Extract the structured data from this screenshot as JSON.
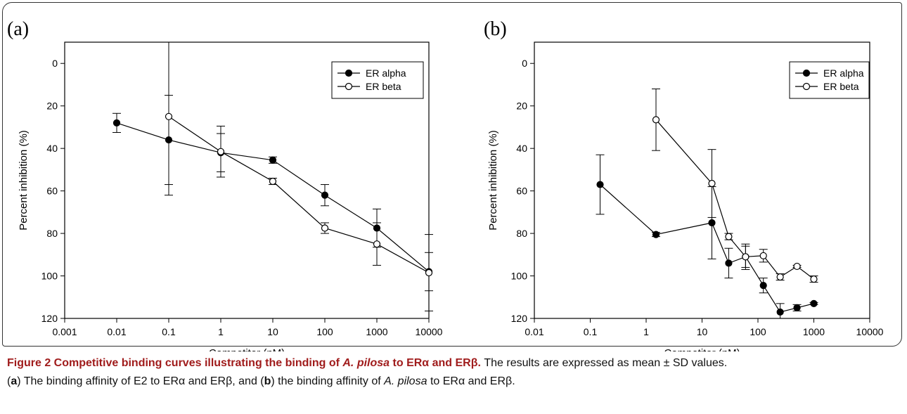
{
  "chart_data": [
    {
      "type": "line",
      "panel_label": "(a)",
      "xlabel": "Competitor (nM)",
      "ylabel": "Percent inhibition (%)",
      "x_scale": "log",
      "xlim": [
        0.001,
        10000
      ],
      "x_ticks": [
        "0.001",
        "0.01",
        "0.1",
        "1",
        "10",
        "100",
        "1000",
        "10000"
      ],
      "x_tick_values": [
        0.001,
        0.01,
        0.1,
        1,
        10,
        100,
        1000,
        10000
      ],
      "y_inverted": true,
      "ylim": [
        120,
        -10
      ],
      "y_ticks": [
        0,
        20,
        40,
        60,
        80,
        100,
        120
      ],
      "legend_placement": "top-right",
      "series": [
        {
          "name": "ER alpha",
          "marker": "filled",
          "x": [
            0.01,
            0.1,
            1,
            10,
            100,
            1000,
            10000
          ],
          "y": [
            28,
            36,
            42,
            45.5,
            62,
            77.5,
            98
          ],
          "err": [
            4.5,
            21,
            9,
            1.5,
            5,
            9,
            9
          ]
        },
        {
          "name": "ER beta",
          "marker": "open",
          "x": [
            0.1,
            1,
            10,
            100,
            1000,
            10000
          ],
          "y": [
            25,
            41.5,
            55.5,
            77.5,
            85,
            98.5
          ],
          "err": [
            37,
            12,
            1.5,
            2.5,
            10,
            18
          ]
        }
      ]
    },
    {
      "type": "line",
      "panel_label": "(b)",
      "xlabel": "Competitor (nM)",
      "ylabel": "Percent inhibition (%)",
      "x_scale": "log",
      "xlim": [
        0.01,
        10000
      ],
      "x_ticks": [
        "0.01",
        "0.1",
        "1",
        "10",
        "100",
        "1000",
        "10000"
      ],
      "x_tick_values": [
        0.01,
        0.1,
        1,
        10,
        100,
        1000,
        10000
      ],
      "y_inverted": true,
      "ylim": [
        120,
        -10
      ],
      "y_ticks": [
        0,
        20,
        40,
        60,
        80,
        100,
        120
      ],
      "legend_placement": "top-right",
      "series": [
        {
          "name": "ER alpha",
          "marker": "filled",
          "x": [
            0.15,
            1.5,
            15,
            30,
            60,
            125,
            250,
            500,
            1000
          ],
          "y": [
            57,
            80.5,
            75,
            94,
            91,
            104.5,
            117,
            115,
            113
          ],
          "err": [
            14,
            1,
            17,
            7,
            6,
            3.5,
            4,
            1.5,
            0.5
          ]
        },
        {
          "name": "ER beta",
          "marker": "open",
          "x": [
            1.5,
            15,
            30,
            60,
            125,
            250,
            500,
            1000
          ],
          "y": [
            26.5,
            56.5,
            81.5,
            91,
            90.5,
            100.5,
            95.5,
            101.5
          ],
          "err": [
            14.5,
            16,
            1.5,
            5,
            3,
            1.5,
            0.5,
            1.5
          ]
        }
      ]
    }
  ],
  "caption": {
    "title": "Figure 2 Competitive binding curves illustrating the binding of",
    "title_italic": "A. pilosa",
    "title_end": "to ERα and ERβ.",
    "text1": "The results are expressed as mean ± SD values.",
    "text2_open": "(",
    "label_a": "a",
    "text2_a": ") The binding affinity of E2 to ERα and ERβ, and (",
    "label_b": "b",
    "text2_b": ") the binding affinity of",
    "text2_italic": "A. pilosa",
    "text2_end": "to ERα and ERβ."
  }
}
